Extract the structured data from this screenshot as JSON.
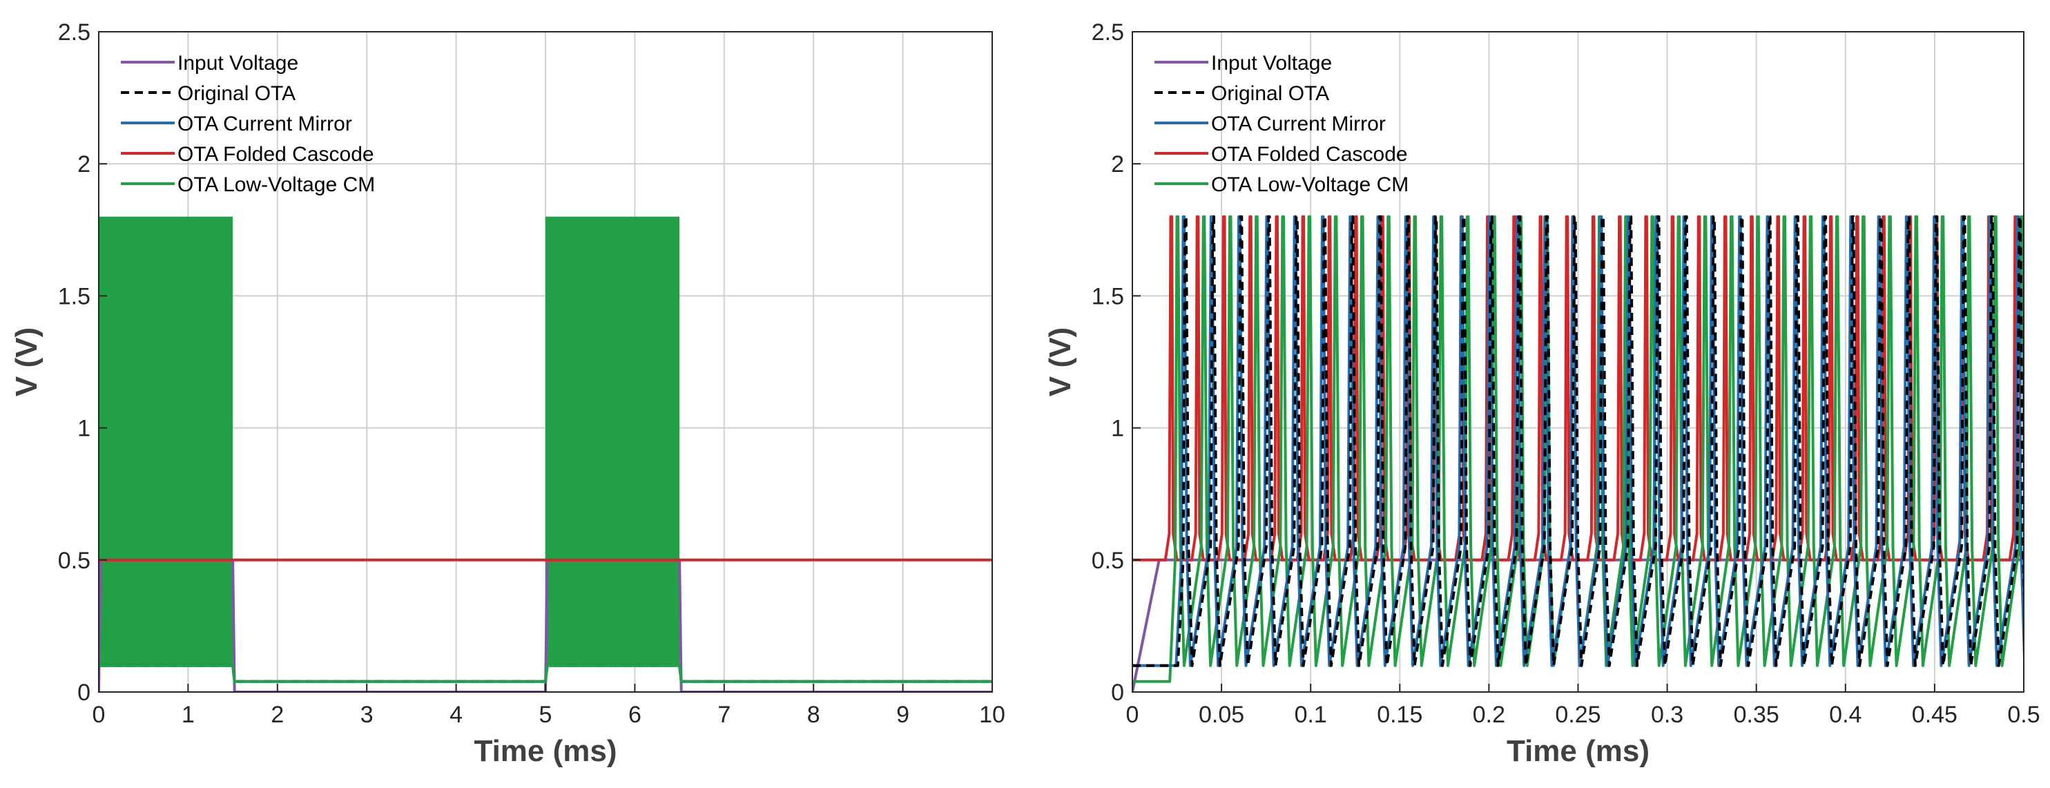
{
  "colors": {
    "input": "#7e57a6",
    "original": "#000000",
    "current_mirror": "#1f6fb2",
    "folded_cascode": "#d62728",
    "low_voltage_cm": "#22a045"
  },
  "chart_data": [
    {
      "type": "line",
      "title": "",
      "xlabel": "Time (ms)",
      "ylabel": "V (V)",
      "xlim": [
        0,
        10
      ],
      "ylim": [
        0,
        2.5
      ],
      "xticks": [
        0,
        1,
        2,
        3,
        4,
        5,
        6,
        7,
        8,
        9,
        10
      ],
      "xtick_labels": [
        "0",
        "1",
        "2",
        "3",
        "4",
        "5",
        "6",
        "7",
        "8",
        "9",
        "10"
      ],
      "yticks": [
        0,
        0.5,
        1,
        1.5,
        2,
        2.5
      ],
      "ytick_labels": [
        "0",
        "0.5",
        "1",
        "1.5",
        "2",
        "2.5"
      ],
      "grid": true,
      "legend_position": "top-left",
      "legend": [
        "Input Voltage",
        "Original OTA",
        "OTA Current Mirror",
        "OTA Folded Cascode",
        "OTA Low-Voltage CM"
      ],
      "series": [
        {
          "name": "Input Voltage",
          "key": "input",
          "style": "solid",
          "x": [
            0,
            0.02,
            1.5,
            1.52,
            5.0,
            5.02,
            6.5,
            6.52,
            10
          ],
          "y": [
            0,
            0.5,
            0.5,
            0,
            0,
            0.5,
            0.5,
            0,
            0
          ]
        },
        {
          "name": "Original OTA",
          "key": "original",
          "style": "dashed",
          "x": [
            0,
            1.5,
            1.52,
            5.0,
            5.02,
            6.5,
            6.52,
            10
          ],
          "y": [
            0.1,
            0.1,
            0.04,
            0.04,
            0.1,
            0.1,
            0.04,
            0.04
          ]
        },
        {
          "name": "OTA Current Mirror",
          "key": "current_mirror",
          "style": "solid",
          "x": [
            0,
            1.5,
            1.52,
            5.0,
            5.02,
            6.5,
            6.52,
            10
          ],
          "y": [
            0.1,
            0.1,
            0.04,
            0.04,
            0.1,
            0.1,
            0.04,
            0.04
          ]
        },
        {
          "name": "OTA Folded Cascode",
          "key": "folded_cascode",
          "style": "solid",
          "x": [
            0,
            1.5,
            1.52,
            5.0,
            5.02,
            6.5,
            6.52,
            10
          ],
          "y": [
            0.5,
            0.5,
            0.5,
            0.5,
            0.5,
            0.5,
            0.5,
            0.5
          ]
        },
        {
          "name": "OTA Low-Voltage CM",
          "key": "low_voltage_cm",
          "style": "solid",
          "x": [
            0,
            1.5,
            1.52,
            5.0,
            5.02,
            6.5,
            6.52,
            10
          ],
          "y": [
            0.1,
            0.1,
            0.04,
            0.04,
            0.1,
            0.1,
            0.04,
            0.04
          ]
        }
      ],
      "spiking_bands": [
        {
          "name": "OTA Low-Voltage CM",
          "key": "low_voltage_cm",
          "x_start": 0,
          "x_end": 1.5,
          "y_low": 0.1,
          "y_high": 1.8
        },
        {
          "name": "OTA Low-Voltage CM",
          "key": "low_voltage_cm",
          "x_start": 5.0,
          "x_end": 6.5,
          "y_low": 0.1,
          "y_high": 1.8
        }
      ]
    },
    {
      "type": "line",
      "title": "",
      "xlabel": "Time (ms)",
      "ylabel": "V (V)",
      "xlim": [
        0,
        0.5
      ],
      "ylim": [
        0,
        2.5
      ],
      "xticks": [
        0,
        0.05,
        0.1,
        0.15,
        0.2,
        0.25,
        0.3,
        0.35,
        0.4,
        0.45,
        0.5
      ],
      "xtick_labels": [
        "0",
        "0.05",
        "0.1",
        "0.15",
        "0.2",
        "0.25",
        "0.3",
        "0.35",
        "0.4",
        "0.45",
        "0.5"
      ],
      "yticks": [
        0,
        0.5,
        1,
        1.5,
        2,
        2.5
      ],
      "ytick_labels": [
        "0",
        "0.5",
        "1",
        "1.5",
        "2",
        "2.5"
      ],
      "grid": true,
      "legend_position": "top-left",
      "legend": [
        "Input Voltage",
        "Original OTA",
        "OTA Current Mirror",
        "OTA Folded Cascode",
        "OTA Low-Voltage CM"
      ],
      "series": [
        {
          "name": "Input Voltage",
          "key": "input",
          "style": "solid",
          "x": [
            0,
            0.015,
            0.5
          ],
          "y": [
            0,
            0.5,
            0.5
          ]
        },
        {
          "name": "OTA Folded Cascode",
          "key": "folded_cascode",
          "style": "spikes",
          "baseline": 0.5,
          "peak": 1.8,
          "first_spike": 0.0215,
          "period": 0.0148
        },
        {
          "name": "OTA Low-Voltage CM",
          "key": "low_voltage_cm",
          "style": "spikes",
          "baseline": 0.1,
          "peak": 1.8,
          "first_spike": 0.025,
          "period": 0.0148,
          "start_level": 0.04
        },
        {
          "name": "OTA Current Mirror",
          "key": "current_mirror",
          "style": "spikes",
          "baseline": 0.1,
          "peak": 1.8,
          "first_spike": 0.0285,
          "period": 0.0156
        },
        {
          "name": "Original OTA",
          "key": "original",
          "style": "spikes-dashed",
          "baseline": 0.1,
          "peak": 1.8,
          "first_spike": 0.0295,
          "period": 0.0156
        }
      ]
    }
  ]
}
